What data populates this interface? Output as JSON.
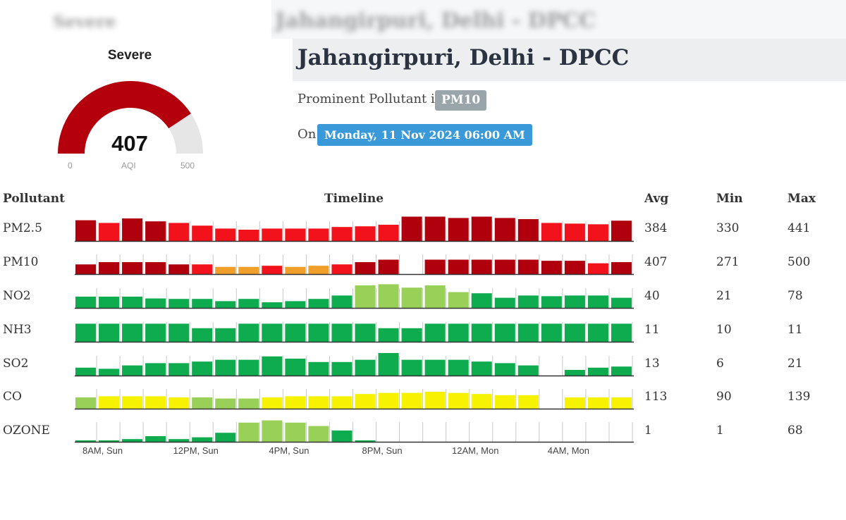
{
  "header": {
    "blurred_left": "Severe",
    "blurred_right": "Jahangirpuri, Delhi - DPCC"
  },
  "gauge": {
    "category": "Severe",
    "value": 407,
    "min": "0",
    "max": "500",
    "label": "AQI",
    "color": "#b3000c",
    "track_color": "#e6e6e6"
  },
  "station": {
    "name": "Jahangirpuri, Delhi - DPCC",
    "prominent_text": "Prominent Pollutant is",
    "prominent_pollutant": "PM10",
    "on_text": "On",
    "datetime": "Monday, 11 Nov 2024 06:00 AM"
  },
  "table": {
    "headers": {
      "pollutant": "Pollutant",
      "timeline": "Timeline",
      "avg": "Avg",
      "min": "Min",
      "max": "Max"
    },
    "rows": [
      {
        "name": "PM2.5",
        "avg": "384",
        "min": "330",
        "max": "441"
      },
      {
        "name": "PM10",
        "avg": "407",
        "min": "271",
        "max": "500"
      },
      {
        "name": "NO2",
        "avg": "40",
        "min": "21",
        "max": "78"
      },
      {
        "name": "NH3",
        "avg": "11",
        "min": "10",
        "max": "11"
      },
      {
        "name": "SO2",
        "avg": "13",
        "min": "6",
        "max": "21"
      },
      {
        "name": "CO",
        "avg": "113",
        "min": "90",
        "max": "139"
      },
      {
        "name": "OZONE",
        "avg": "1",
        "min": "1",
        "max": "68"
      }
    ]
  },
  "colors": {
    "darkred": "#b0000e",
    "red": "#f2121b",
    "orange": "#f0a02a",
    "lightgreen": "#99d158",
    "green": "#0eab4f",
    "yellow": "#f6f200"
  },
  "chart_data": {
    "type": "bar",
    "x_labels": [
      "8AM, Sun",
      "12PM, Sun",
      "4PM, Sun",
      "8PM, Sun",
      "12AM, Mon",
      "4AM, Mon"
    ],
    "series": [
      {
        "name": "PM2.5",
        "values": [
          0.92,
          0.8,
          1.0,
          0.87,
          0.8,
          0.68,
          0.55,
          0.5,
          0.55,
          0.55,
          0.55,
          0.62,
          0.65,
          0.72,
          1.08,
          1.08,
          1.02,
          1.08,
          1.02,
          0.97,
          0.8,
          0.77,
          0.74,
          0.9
        ],
        "colors": [
          "darkred",
          "red",
          "darkred",
          "darkred",
          "red",
          "red",
          "red",
          "red",
          "red",
          "red",
          "red",
          "red",
          "red",
          "red",
          "darkred",
          "darkred",
          "darkred",
          "darkred",
          "darkred",
          "darkred",
          "red",
          "red",
          "red",
          "darkred"
        ]
      },
      {
        "name": "PM10",
        "values": [
          0.43,
          0.53,
          0.53,
          0.53,
          0.43,
          0.43,
          0.32,
          0.32,
          0.37,
          0.32,
          0.37,
          0.43,
          0.53,
          0.64,
          0,
          0.64,
          0.64,
          0.64,
          0.64,
          0.64,
          0.59,
          0.59,
          0.48,
          0.53
        ],
        "colors": [
          "darkred",
          "darkred",
          "darkred",
          "darkred",
          "darkred",
          "red",
          "orange",
          "orange",
          "red",
          "orange",
          "orange",
          "red",
          "darkred",
          "darkred",
          "darkred",
          "darkred",
          "darkred",
          "darkred",
          "darkred",
          "darkred",
          "darkred",
          "darkred",
          "red",
          "darkred"
        ]
      },
      {
        "name": "NO2",
        "values": [
          0.5,
          0.5,
          0.5,
          0.42,
          0.4,
          0.4,
          0.3,
          0.4,
          0.25,
          0.3,
          0.4,
          0.55,
          1.0,
          1.05,
          0.9,
          1.0,
          0.7,
          0.65,
          0.45,
          0.55,
          0.52,
          0.55,
          0.55,
          0.45
        ],
        "colors": [
          "green",
          "green",
          "green",
          "green",
          "green",
          "green",
          "green",
          "green",
          "green",
          "green",
          "green",
          "green",
          "lightgreen",
          "lightgreen",
          "lightgreen",
          "lightgreen",
          "lightgreen",
          "green",
          "green",
          "green",
          "green",
          "green",
          "green",
          "green"
        ]
      },
      {
        "name": "NH3",
        "values": [
          0.8,
          0.8,
          0.8,
          0.8,
          0.8,
          0.6,
          0.6,
          0.8,
          0.8,
          0.8,
          0.8,
          0.8,
          0.8,
          0.6,
          0.6,
          0.8,
          0.8,
          0.8,
          0.8,
          0.8,
          0.8,
          0.8,
          0.8,
          0.8
        ],
        "colors": [
          "green",
          "green",
          "green",
          "green",
          "green",
          "green",
          "green",
          "green",
          "green",
          "green",
          "green",
          "green",
          "green",
          "green",
          "green",
          "green",
          "green",
          "green",
          "green",
          "green",
          "green",
          "green",
          "green",
          "green"
        ]
      },
      {
        "name": "SO2",
        "values": [
          0.35,
          0.3,
          0.45,
          0.55,
          0.55,
          0.62,
          0.7,
          0.7,
          0.85,
          0.75,
          0.6,
          0.6,
          0.7,
          1.0,
          0.7,
          0.7,
          0.7,
          0.62,
          0.55,
          0.45,
          0,
          0.25,
          0.35,
          0.4
        ],
        "colors": [
          "green",
          "green",
          "green",
          "green",
          "green",
          "green",
          "green",
          "green",
          "green",
          "green",
          "green",
          "green",
          "green",
          "green",
          "green",
          "green",
          "green",
          "green",
          "green",
          "green",
          "green",
          "green",
          "green",
          "green"
        ]
      },
      {
        "name": "CO",
        "values": [
          0.5,
          0.55,
          0.55,
          0.55,
          0.5,
          0.5,
          0.45,
          0.45,
          0.5,
          0.55,
          0.55,
          0.55,
          0.65,
          0.7,
          0.7,
          0.75,
          0.7,
          0.65,
          0.6,
          0.6,
          0,
          0.5,
          0.5,
          0.5
        ],
        "colors": [
          "lightgreen",
          "yellow",
          "yellow",
          "yellow",
          "yellow",
          "lightgreen",
          "lightgreen",
          "lightgreen",
          "yellow",
          "yellow",
          "yellow",
          "yellow",
          "yellow",
          "yellow",
          "yellow",
          "yellow",
          "yellow",
          "yellow",
          "yellow",
          "yellow",
          "yellow",
          "yellow",
          "yellow",
          "yellow"
        ]
      },
      {
        "name": "OZONE",
        "values": [
          0.06,
          0.03,
          0.12,
          0.25,
          0.12,
          0.2,
          0.4,
          0.85,
          0.95,
          0.85,
          0.7,
          0.5,
          0.06,
          0,
          0,
          0,
          0,
          0,
          0,
          0,
          0,
          0,
          0,
          0
        ],
        "colors": [
          "green",
          "green",
          "green",
          "green",
          "green",
          "green",
          "green",
          "lightgreen",
          "lightgreen",
          "lightgreen",
          "lightgreen",
          "green",
          "green",
          "green",
          "green",
          "green",
          "green",
          "green",
          "green",
          "green",
          "green",
          "green",
          "green",
          "green"
        ]
      }
    ]
  }
}
